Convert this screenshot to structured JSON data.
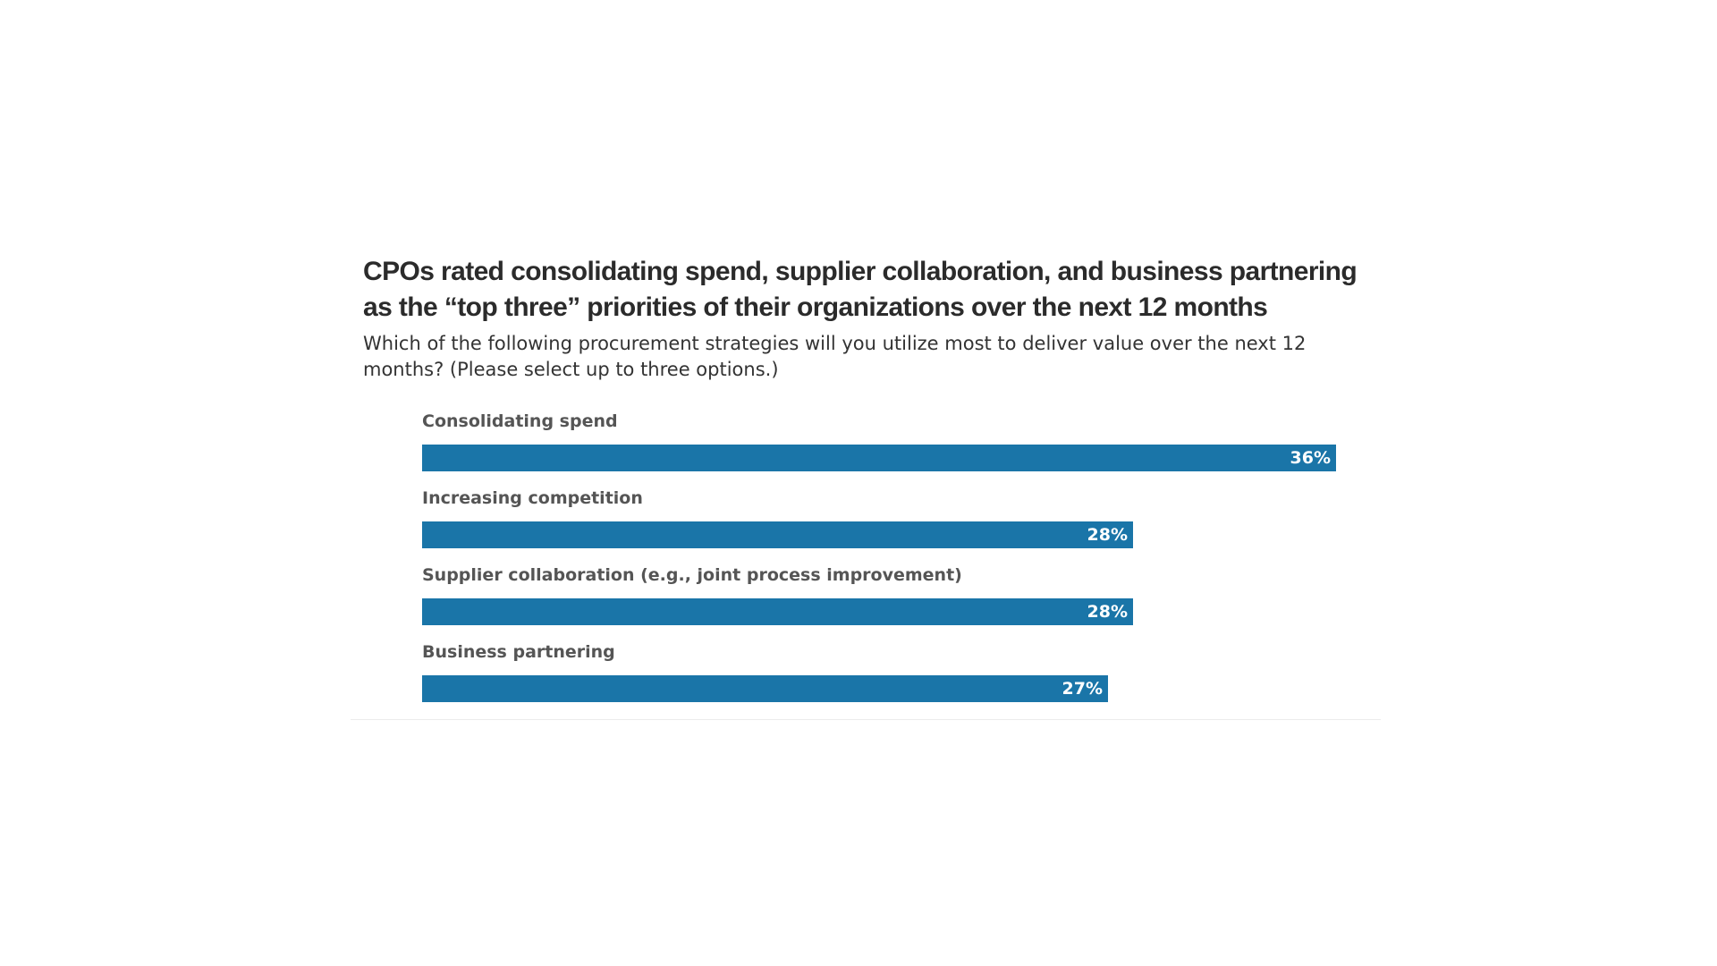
{
  "chart_data": {
    "type": "bar",
    "orientation": "horizontal",
    "title": "CPOs rated consolidating spend, supplier collaboration, and business partnering as the “top three” priorities of their organizations over the next 12 months",
    "subtitle": "Which of the following procurement strategies will you utilize most to deliver value over the next 12 months? (Please select up to three options.)",
    "categories": [
      "Consolidating spend",
      "Increasing competition",
      "Supplier collaboration (e.g., joint process improvement)",
      "Business partnering"
    ],
    "values": [
      36,
      28,
      28,
      27
    ],
    "value_labels": [
      "36%",
      "28%",
      "28%",
      "27%"
    ],
    "unit": "%",
    "xlim": [
      0,
      36
    ],
    "grid": false,
    "legend": "none",
    "bar_color": "#1a75a8"
  }
}
